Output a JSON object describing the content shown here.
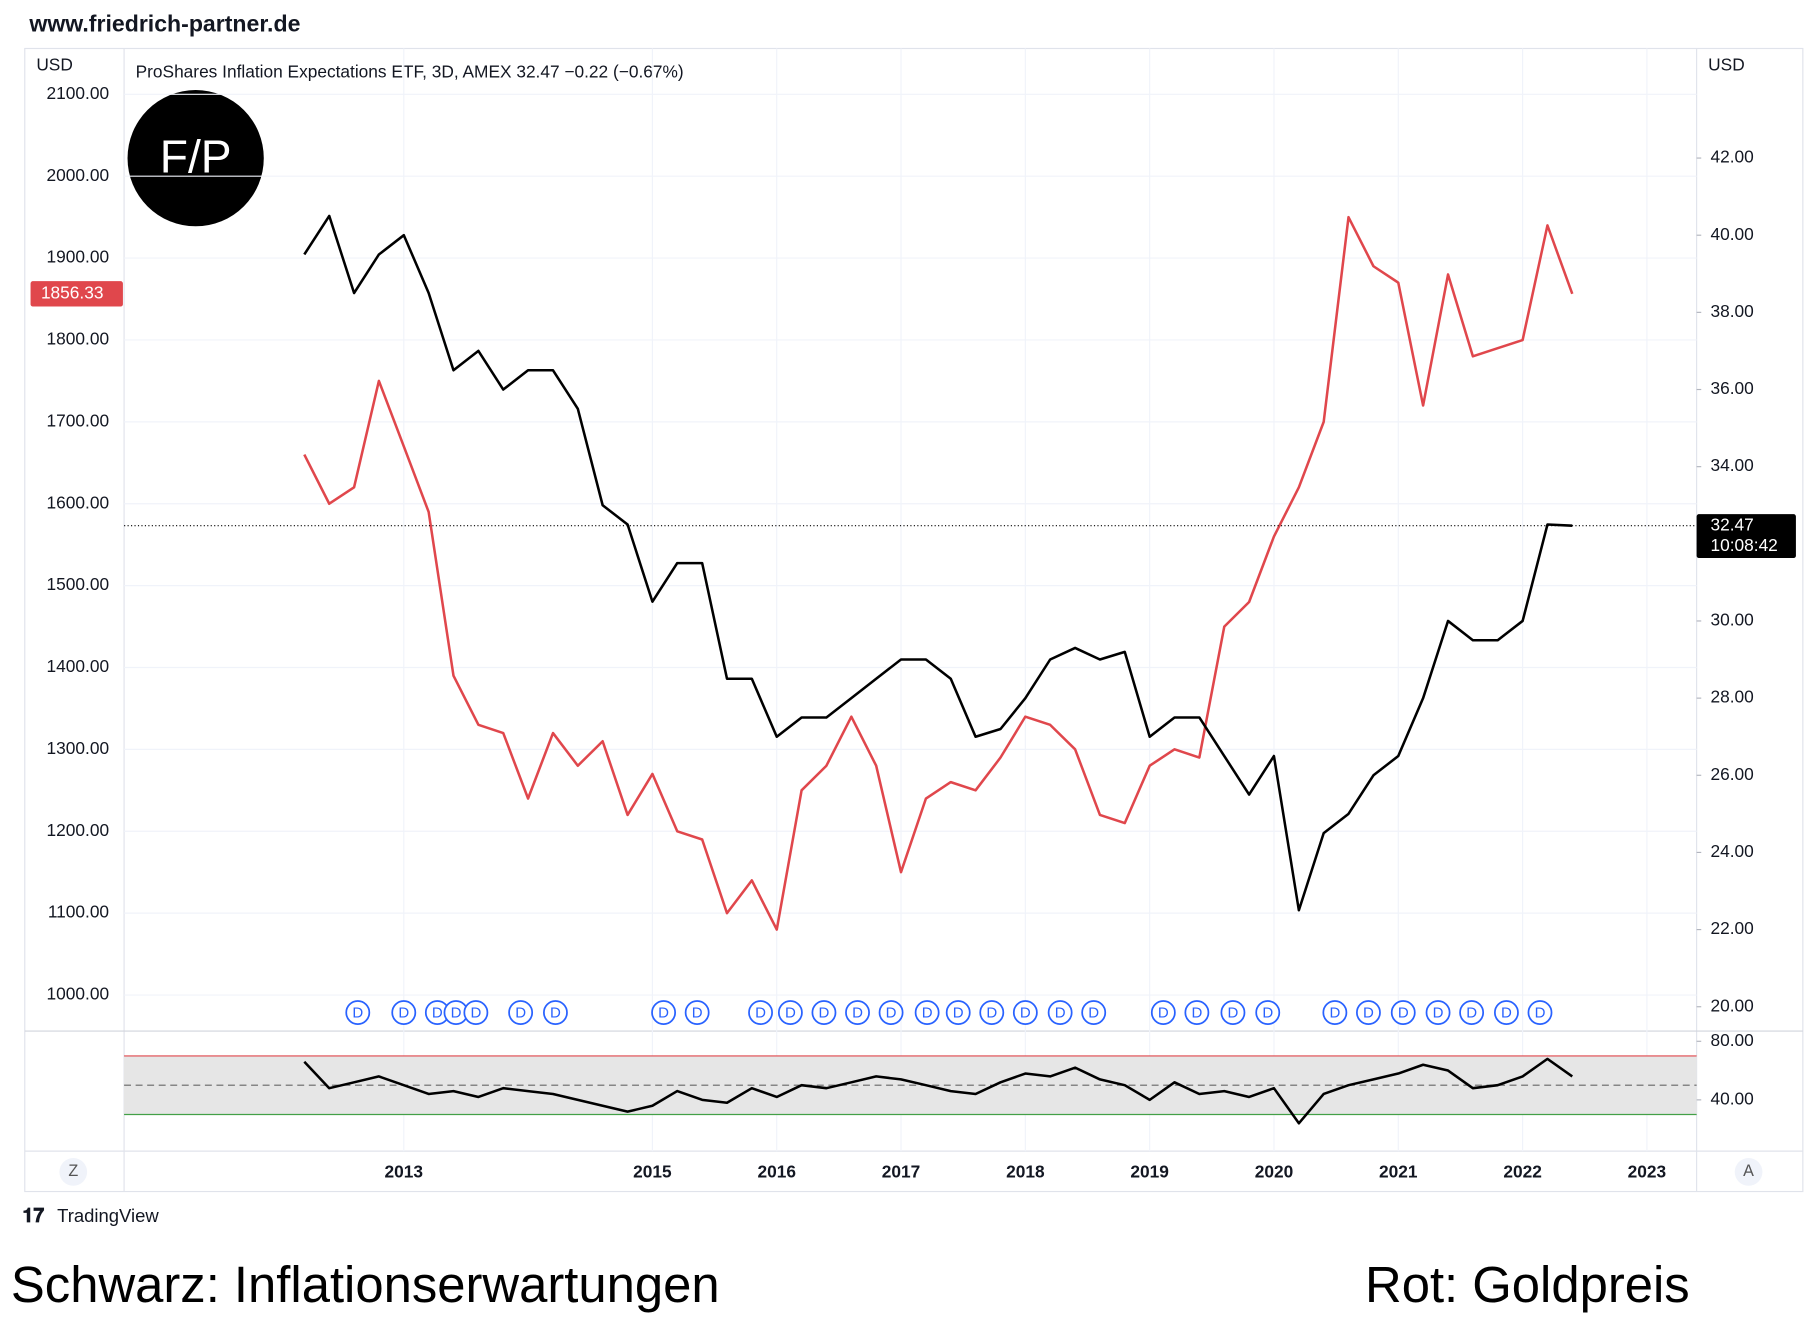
{
  "header": {
    "site": "www.friedrich-partner.de"
  },
  "logo": "F/P",
  "chart_data": [
    {
      "type": "line",
      "title": "ProShares Inflation Expectations ETF, 3D, AMEX  32.47  −0.22 (−0.67%)",
      "ylabel": "USD",
      "y2label": "USD",
      "x": [
        2012.2,
        2012.4,
        2012.6,
        2012.8,
        2013.0,
        2013.2,
        2013.4,
        2013.6,
        2013.8,
        2014.0,
        2014.2,
        2014.4,
        2014.6,
        2014.8,
        2015.0,
        2015.2,
        2015.4,
        2015.6,
        2015.8,
        2016.0,
        2016.2,
        2016.4,
        2016.6,
        2016.8,
        2017.0,
        2017.2,
        2017.4,
        2017.6,
        2017.8,
        2018.0,
        2018.2,
        2018.4,
        2018.6,
        2018.8,
        2019.0,
        2019.2,
        2019.4,
        2019.6,
        2019.8,
        2020.0,
        2020.2,
        2020.4,
        2020.6,
        2020.8,
        2021.0,
        2021.2,
        2021.4,
        2021.6,
        2021.8,
        2022.0,
        2022.2,
        2022.4
      ],
      "series": [
        {
          "color": "#e0474c",
          "axis": "y",
          "values": [
            1660,
            1600,
            1620,
            1750,
            1670,
            1590,
            1390,
            1330,
            1320,
            1240,
            1320,
            1280,
            1310,
            1220,
            1270,
            1200,
            1190,
            1100,
            1140,
            1080,
            1250,
            1280,
            1340,
            1280,
            1150,
            1240,
            1260,
            1250,
            1290,
            1340,
            1330,
            1300,
            1220,
            1210,
            1280,
            1300,
            1290,
            1450,
            1480,
            1560,
            1620,
            1700,
            1950,
            1890,
            1870,
            1720,
            1880,
            1780,
            1790,
            1800,
            1940,
            1856.33
          ]
        },
        {
          "color": "#000000",
          "axis": "y2",
          "values": [
            39.5,
            40.5,
            38.5,
            39.5,
            40.0,
            38.5,
            36.5,
            37.0,
            36.0,
            36.5,
            36.5,
            35.5,
            33.0,
            32.5,
            30.5,
            31.5,
            31.5,
            28.5,
            28.5,
            27.0,
            27.5,
            27.5,
            28.0,
            28.5,
            29.0,
            29.0,
            28.5,
            27.0,
            27.2,
            28.0,
            29.0,
            29.3,
            29.0,
            29.2,
            27.0,
            27.5,
            27.5,
            26.5,
            25.5,
            26.5,
            22.5,
            24.5,
            25.0,
            26.0,
            26.5,
            28.0,
            30.0,
            29.5,
            29.5,
            30.0,
            32.5,
            32.47
          ]
        }
      ],
      "xlim": [
        2010.75,
        2023.4
      ],
      "xticks": [
        2013,
        2015,
        2016,
        2017,
        2018,
        2019,
        2020,
        2021,
        2022,
        2023
      ],
      "ylim": [
        956,
        2156
      ],
      "yticks": [
        {
          "value": 1000,
          "label": "1000.00"
        },
        {
          "value": 1100,
          "label": "1100.00"
        },
        {
          "value": 1200,
          "label": "1200.00"
        },
        {
          "value": 1300,
          "label": "1300.00"
        },
        {
          "value": 1400,
          "label": "1400.00"
        },
        {
          "value": 1500,
          "label": "1500.00"
        },
        {
          "value": 1600,
          "label": "1600.00"
        },
        {
          "value": 1700,
          "label": "1700.00"
        },
        {
          "value": 1800,
          "label": "1800.00"
        },
        {
          "value": 1900,
          "label": "1900.00"
        },
        {
          "value": 2000,
          "label": "2000.00"
        },
        {
          "value": 2100,
          "label": "2100.00"
        }
      ],
      "y2lim": [
        19.37,
        44.84
      ],
      "y2ticks": [
        {
          "value": 20,
          "label": "20.00"
        },
        {
          "value": 22,
          "label": "22.00"
        },
        {
          "value": 24,
          "label": "24.00"
        },
        {
          "value": 26,
          "label": "26.00"
        },
        {
          "value": 28,
          "label": "28.00"
        },
        {
          "value": 30,
          "label": "30.00"
        },
        {
          "value": 32,
          "label": "32.00"
        },
        {
          "value": 34,
          "label": "34.00"
        },
        {
          "value": 36,
          "label": "36.00"
        },
        {
          "value": 38,
          "label": "38.00"
        },
        {
          "value": 40,
          "label": "40.00"
        },
        {
          "value": 42,
          "label": "42.00"
        }
      ],
      "price_labels": [
        {
          "value": 1856.33,
          "label": "1856.33",
          "axis": "y",
          "color": "#e0474c"
        },
        {
          "value": 32.47,
          "label": "32.47",
          "axis": "y2",
          "color": "#000000"
        }
      ],
      "countdown": "10:08:42",
      "markers": {
        "label": "D",
        "color": "#2962ff",
        "x": [
          2012.63,
          2013.0,
          2013.27,
          2013.42,
          2013.58,
          2013.94,
          2014.22,
          2015.09,
          2015.36,
          2015.87,
          2016.11,
          2016.38,
          2016.65,
          2016.92,
          2017.21,
          2017.46,
          2017.73,
          2018.0,
          2018.28,
          2018.55,
          2019.11,
          2019.38,
          2019.67,
          2019.95,
          2020.49,
          2020.76,
          2021.04,
          2021.32,
          2021.59,
          2021.87,
          2022.14
        ]
      },
      "grid": true
    },
    {
      "type": "line",
      "x": [
        2012.2,
        2012.4,
        2012.6,
        2012.8,
        2013.0,
        2013.2,
        2013.4,
        2013.6,
        2013.8,
        2014.0,
        2014.2,
        2014.4,
        2014.6,
        2014.8,
        2015.0,
        2015.2,
        2015.4,
        2015.6,
        2015.8,
        2016.0,
        2016.2,
        2016.4,
        2016.6,
        2016.8,
        2017.0,
        2017.2,
        2017.4,
        2017.6,
        2017.8,
        2018.0,
        2018.2,
        2018.4,
        2018.6,
        2018.8,
        2019.0,
        2019.2,
        2019.4,
        2019.6,
        2019.8,
        2020.0,
        2020.2,
        2020.4,
        2020.6,
        2020.8,
        2021.0,
        2021.2,
        2021.4,
        2021.6,
        2021.8,
        2022.0,
        2022.2,
        2022.4
      ],
      "series": [
        {
          "color": "#000000",
          "values": [
            66,
            48,
            52,
            56,
            50,
            44,
            46,
            42,
            48,
            46,
            44,
            40,
            36,
            32,
            36,
            46,
            40,
            38,
            48,
            42,
            50,
            48,
            52,
            56,
            54,
            50,
            46,
            44,
            52,
            58,
            56,
            62,
            54,
            50,
            40,
            52,
            44,
            46,
            42,
            48,
            24,
            44,
            50,
            54,
            58,
            64,
            60,
            48,
            50,
            56,
            68,
            56
          ]
        }
      ],
      "xlim": [
        2010.75,
        2023.4
      ],
      "ylim": [
        5,
        87
      ],
      "yticks": [
        {
          "value": 40,
          "label": "40.00"
        },
        {
          "value": 80,
          "label": "80.00"
        }
      ],
      "bands": {
        "upper": 70,
        "middle": 50,
        "lower": 30,
        "upper_color": "#e0474c",
        "lower_color": "#43a047",
        "fill": "#e6e6e6"
      }
    }
  ],
  "buttons": [
    "Z",
    "A"
  ],
  "footer": {
    "brand": "TradingView",
    "left_caption": "Schwarz: Inflationserwartungen",
    "right_caption": "Rot: Goldpreis"
  }
}
